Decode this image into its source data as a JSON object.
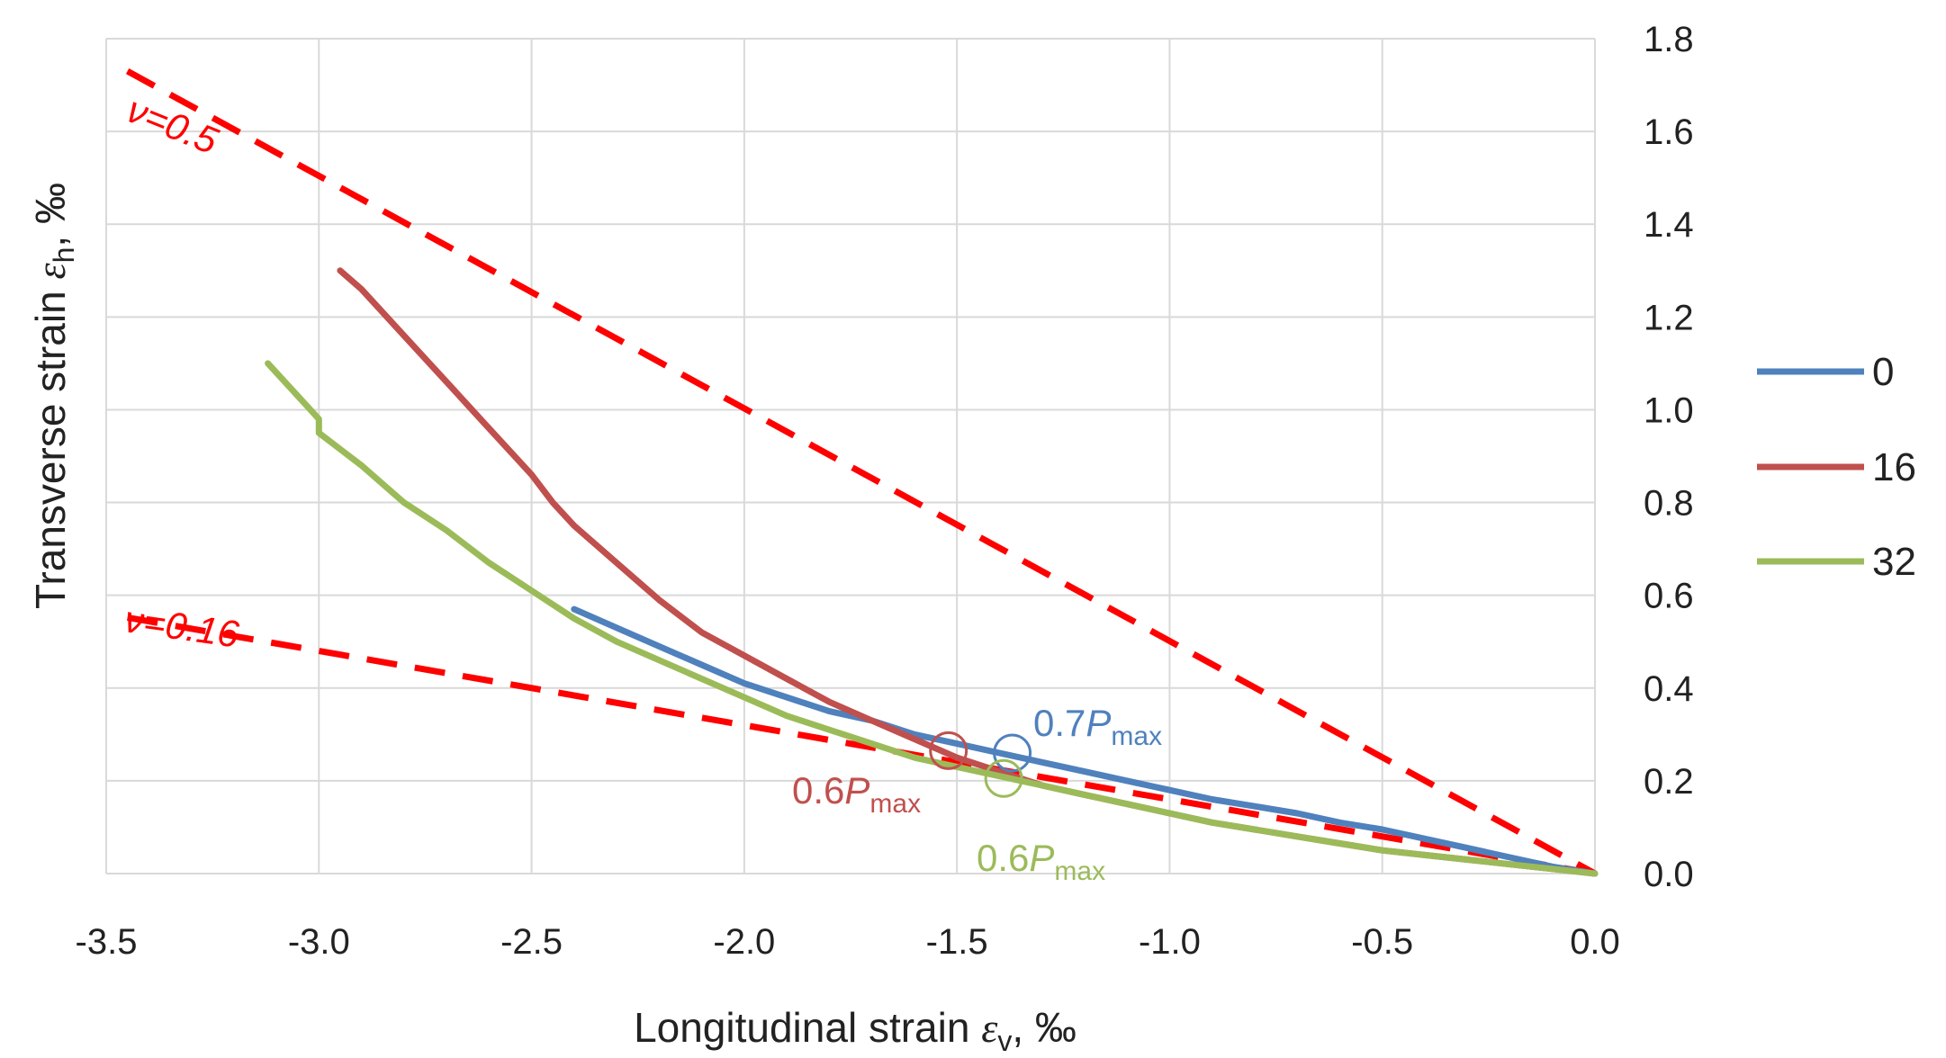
{
  "chart_data": {
    "type": "line",
    "title": "",
    "xlabel": {
      "prefix": "Longitudinal strain ",
      "symbol": "ε",
      "subscript": "v",
      "suffix": ", ‰"
    },
    "ylabel": {
      "prefix": "Transverse strain ",
      "symbol": "ε",
      "subscript": "h",
      "suffix": ", ‰"
    },
    "xlim": [
      -3.5,
      0.0
    ],
    "ylim": [
      0.0,
      1.8
    ],
    "x_ticks": [
      "-3.5",
      "-3.0",
      "-2.5",
      "-2.0",
      "-1.5",
      "-1.0",
      "-0.5",
      "0.0"
    ],
    "y_ticks": [
      "0.0",
      "0.2",
      "0.4",
      "0.6",
      "0.8",
      "1.0",
      "1.2",
      "1.4",
      "1.6",
      "1.8"
    ],
    "y_axis_side": "right",
    "grid": true,
    "legend_position": "right",
    "series": [
      {
        "name": "0",
        "color": "#4f81bd",
        "points": [
          [
            -2.4,
            0.57
          ],
          [
            -2.3,
            0.53
          ],
          [
            -2.2,
            0.49
          ],
          [
            -2.1,
            0.45
          ],
          [
            -2.0,
            0.41
          ],
          [
            -1.9,
            0.38
          ],
          [
            -1.8,
            0.35
          ],
          [
            -1.7,
            0.33
          ],
          [
            -1.6,
            0.3
          ],
          [
            -1.5,
            0.28
          ],
          [
            -1.4,
            0.26
          ],
          [
            -1.3,
            0.24
          ],
          [
            -1.2,
            0.22
          ],
          [
            -1.1,
            0.2
          ],
          [
            -1.0,
            0.18
          ],
          [
            -0.9,
            0.16
          ],
          [
            -0.8,
            0.145
          ],
          [
            -0.7,
            0.13
          ],
          [
            -0.6,
            0.11
          ],
          [
            -0.5,
            0.095
          ],
          [
            -0.4,
            0.075
          ],
          [
            -0.3,
            0.055
          ],
          [
            -0.2,
            0.035
          ],
          [
            -0.1,
            0.015
          ],
          [
            0.0,
            0.0
          ]
        ]
      },
      {
        "name": "16",
        "color": "#c0504d",
        "points": [
          [
            -2.95,
            1.3
          ],
          [
            -2.9,
            1.26
          ],
          [
            -2.85,
            1.21
          ],
          [
            -2.8,
            1.16
          ],
          [
            -2.7,
            1.06
          ],
          [
            -2.6,
            0.96
          ],
          [
            -2.5,
            0.86
          ],
          [
            -2.45,
            0.8
          ],
          [
            -2.4,
            0.75
          ],
          [
            -2.3,
            0.67
          ],
          [
            -2.2,
            0.59
          ],
          [
            -2.1,
            0.52
          ],
          [
            -2.0,
            0.47
          ],
          [
            -1.9,
            0.42
          ],
          [
            -1.8,
            0.37
          ],
          [
            -1.7,
            0.33
          ],
          [
            -1.6,
            0.29
          ],
          [
            -1.5,
            0.25
          ],
          [
            -1.4,
            0.22
          ],
          [
            -1.3,
            0.19
          ],
          [
            -1.2,
            0.17
          ],
          [
            -1.1,
            0.15
          ],
          [
            -1.0,
            0.13
          ],
          [
            -0.9,
            0.11
          ],
          [
            -0.8,
            0.095
          ],
          [
            -0.7,
            0.08
          ],
          [
            -0.6,
            0.065
          ],
          [
            -0.5,
            0.05
          ],
          [
            -0.4,
            0.04
          ],
          [
            -0.3,
            0.03
          ],
          [
            -0.2,
            0.02
          ],
          [
            -0.1,
            0.01
          ],
          [
            0.0,
            0.0
          ]
        ]
      },
      {
        "name": "32",
        "color": "#9bbb59",
        "points": [
          [
            -3.12,
            1.1
          ],
          [
            -3.08,
            1.06
          ],
          [
            -3.02,
            1.0
          ],
          [
            -3.0,
            0.98
          ],
          [
            -3.0,
            0.95
          ],
          [
            -2.9,
            0.88
          ],
          [
            -2.8,
            0.8
          ],
          [
            -2.7,
            0.74
          ],
          [
            -2.6,
            0.67
          ],
          [
            -2.5,
            0.61
          ],
          [
            -2.4,
            0.55
          ],
          [
            -2.3,
            0.5
          ],
          [
            -2.2,
            0.46
          ],
          [
            -2.1,
            0.42
          ],
          [
            -2.0,
            0.38
          ],
          [
            -1.9,
            0.34
          ],
          [
            -1.8,
            0.31
          ],
          [
            -1.7,
            0.28
          ],
          [
            -1.6,
            0.25
          ],
          [
            -1.5,
            0.23
          ],
          [
            -1.4,
            0.21
          ],
          [
            -1.3,
            0.19
          ],
          [
            -1.2,
            0.17
          ],
          [
            -1.1,
            0.15
          ],
          [
            -1.0,
            0.13
          ],
          [
            -0.9,
            0.11
          ],
          [
            -0.8,
            0.095
          ],
          [
            -0.7,
            0.08
          ],
          [
            -0.6,
            0.065
          ],
          [
            -0.5,
            0.05
          ],
          [
            -0.4,
            0.04
          ],
          [
            -0.3,
            0.03
          ],
          [
            -0.2,
            0.02
          ],
          [
            -0.1,
            0.01
          ],
          [
            0.0,
            0.0
          ]
        ]
      }
    ],
    "reference_lines": [
      {
        "label": "ν=0.5",
        "color": "#ff0000",
        "style": "dashed",
        "points": [
          [
            -3.45,
            1.73
          ],
          [
            0.0,
            0.0
          ]
        ]
      },
      {
        "label": "ν=0.16",
        "color": "#ff0000",
        "style": "dashed",
        "points": [
          [
            -3.45,
            0.552
          ],
          [
            0.0,
            0.0
          ]
        ]
      }
    ],
    "markers": [
      {
        "series": "0",
        "x": -1.37,
        "y": 0.26,
        "color": "#4f81bd",
        "text": "0.7",
        "italic_part": "P",
        "sub": "max"
      },
      {
        "series": "16",
        "x": -1.52,
        "y": 0.265,
        "color": "#c0504d",
        "text": "0.6",
        "italic_part": "P",
        "sub": "max"
      },
      {
        "series": "32",
        "x": -1.39,
        "y": 0.205,
        "color": "#9bbb59",
        "text": "0.6",
        "italic_part": "P",
        "sub": "max"
      }
    ]
  }
}
